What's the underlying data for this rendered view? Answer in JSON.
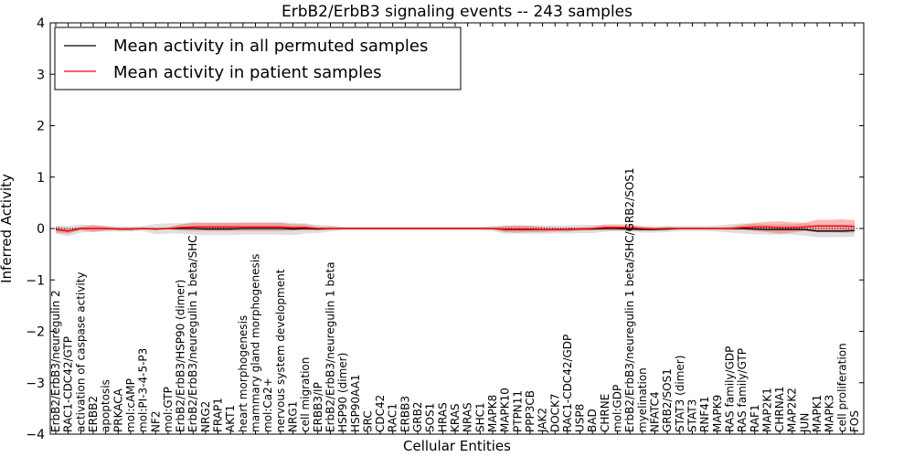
{
  "chart_data": {
    "type": "line",
    "title": "ErbB2/ErbB3 signaling events -- 243 samples",
    "xlabel": "Cellular Entities",
    "ylabel": "Inferred Activity",
    "ylim": [
      -4,
      4
    ],
    "yticks": [
      -4,
      -3,
      -2,
      -1,
      0,
      1,
      2,
      3,
      4
    ],
    "legend_position": "top-left",
    "categories": [
      "ErbB2/ErbB3/neuregulin 2",
      "RAC1-CDC42/GTP",
      "activation of caspase activity",
      "ERBB2",
      "apoptosis",
      "PRKACA",
      "mol:cAMP",
      "mol:PI-3-4-5-P3",
      "NF2",
      "mol:GTP",
      "ErbB2/ErbB3/HSP90 (dimer)",
      "ErbB2/ErbB3/neuregulin 1 beta/SHC",
      "NRG2",
      "FRAP1",
      "AKT1",
      "heart morphogenesis",
      "mammary gland morphogenesis",
      "mol:Ca2+",
      "nervous system development",
      "NRG1",
      "cell migration",
      "ERBB3/IP",
      "ErbB2/ErbB3/neuregulin 1 beta",
      "HSP90 (dimer)",
      "HSP90AA1",
      "SRC",
      "CDC42",
      "RAC1",
      "ERBB3",
      "GRB2",
      "SOS1",
      "HRAS",
      "KRAS",
      "NRAS",
      "SHC1",
      "MAPK8",
      "MAPK10",
      "PTPN11",
      "PPP3CB",
      "JAK2",
      "DOCK7",
      "RAC1-CDC42/GDP",
      "USP8",
      "BAD",
      "CHRNE",
      "mol:GDP",
      "ErbB2/ErbB3/neuregulin 1 beta/SHC/GRB2/SOS1",
      "myelination",
      "NFATC4",
      "GRB2/SOS1",
      "STAT3 (dimer)",
      "STAT3",
      "RNF41",
      "MAPK9",
      "RAS family/GDP",
      "RAS family/GTP",
      "RAF1",
      "MAP2K1",
      "CHRNA1",
      "MAP2K2",
      "JUN",
      "MAPK1",
      "MAPK3",
      "cell proliferation",
      "FOS"
    ],
    "series": [
      {
        "name": "Mean activity in all permuted samples",
        "color": "#000000",
        "values": [
          -0.02,
          -0.05,
          0.0,
          0.0,
          0.0,
          -0.01,
          -0.01,
          0.0,
          -0.01,
          0.0,
          0.0,
          0.0,
          -0.01,
          -0.01,
          -0.01,
          0.0,
          0.0,
          0.0,
          0.0,
          -0.01,
          0.0,
          -0.01,
          0.0,
          0.0,
          0.0,
          0.0,
          0.0,
          0.0,
          0.0,
          0.0,
          0.0,
          0.0,
          0.0,
          0.0,
          0.0,
          0.0,
          -0.02,
          -0.02,
          -0.02,
          -0.02,
          -0.02,
          -0.02,
          -0.01,
          -0.01,
          0.0,
          0.0,
          -0.01,
          -0.02,
          -0.02,
          -0.01,
          0.0,
          0.0,
          0.0,
          0.0,
          0.0,
          0.0,
          -0.01,
          -0.02,
          -0.02,
          -0.02,
          -0.02,
          -0.05,
          -0.05,
          -0.05,
          -0.04
        ],
        "band": [
          0.08,
          0.1,
          0.08,
          0.06,
          0.06,
          0.05,
          0.05,
          0.05,
          0.1,
          0.1,
          0.1,
          0.12,
          0.12,
          0.12,
          0.12,
          0.12,
          0.12,
          0.12,
          0.12,
          0.12,
          0.1,
          0.08,
          0.06,
          0.03,
          0.03,
          0.03,
          0.03,
          0.03,
          0.03,
          0.03,
          0.03,
          0.03,
          0.03,
          0.03,
          0.03,
          0.05,
          0.08,
          0.08,
          0.08,
          0.08,
          0.08,
          0.08,
          0.08,
          0.08,
          0.06,
          0.05,
          0.05,
          0.06,
          0.06,
          0.06,
          0.05,
          0.05,
          0.05,
          0.06,
          0.08,
          0.1,
          0.1,
          0.1,
          0.1,
          0.1,
          0.12,
          0.12,
          0.12,
          0.12,
          0.12
        ]
      },
      {
        "name": "Mean activity in patient samples",
        "color": "#ff0000",
        "values": [
          -0.02,
          -0.05,
          0.0,
          0.0,
          0.0,
          -0.01,
          -0.01,
          0.0,
          -0.01,
          0.0,
          0.02,
          0.03,
          0.03,
          0.03,
          0.03,
          0.03,
          0.03,
          0.03,
          0.03,
          0.02,
          0.02,
          0.0,
          0.0,
          0.0,
          0.0,
          0.0,
          0.0,
          0.0,
          0.0,
          0.0,
          0.0,
          0.0,
          0.0,
          0.0,
          0.0,
          0.0,
          -0.01,
          -0.01,
          -0.01,
          -0.02,
          -0.02,
          -0.02,
          -0.01,
          0.0,
          0.02,
          0.02,
          0.02,
          0.0,
          -0.01,
          0.0,
          0.0,
          0.0,
          0.0,
          0.0,
          0.0,
          0.02,
          0.03,
          0.03,
          0.02,
          0.02,
          0.03,
          0.05,
          0.05,
          0.05,
          0.04
        ],
        "band": [
          0.06,
          0.05,
          0.03,
          0.07,
          0.04,
          0.02,
          0.02,
          0.02,
          0.02,
          0.02,
          0.06,
          0.08,
          0.08,
          0.08,
          0.08,
          0.08,
          0.08,
          0.08,
          0.08,
          0.06,
          0.06,
          0.03,
          0.03,
          0.02,
          0.02,
          0.02,
          0.02,
          0.02,
          0.02,
          0.02,
          0.02,
          0.02,
          0.02,
          0.02,
          0.02,
          0.02,
          0.06,
          0.07,
          0.06,
          0.05,
          0.04,
          0.04,
          0.03,
          0.03,
          0.06,
          0.06,
          0.06,
          0.04,
          0.03,
          0.03,
          0.02,
          0.02,
          0.02,
          0.02,
          0.03,
          0.05,
          0.08,
          0.1,
          0.12,
          0.1,
          0.08,
          0.12,
          0.12,
          0.13,
          0.12
        ]
      }
    ]
  }
}
